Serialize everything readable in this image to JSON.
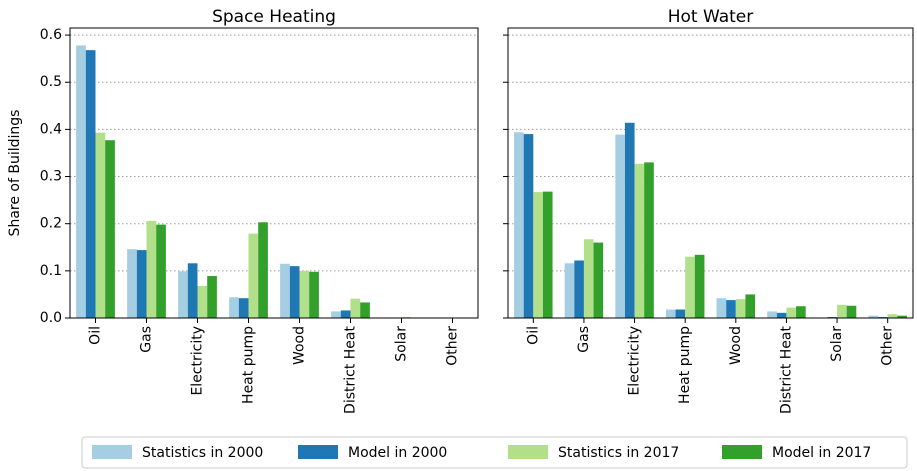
{
  "chart_data": [
    {
      "type": "bar",
      "title": "Space Heating",
      "y_label": "Share of Buildings",
      "categories": [
        "Oil",
        "Gas",
        "Electricity",
        "Heat pump",
        "Wood",
        "District Heat",
        "Solar",
        "Other"
      ],
      "series": [
        {
          "name": "Statistics in 2000",
          "color": "#a6cee3",
          "values": [
            0.578,
            0.146,
            0.099,
            0.044,
            0.115,
            0.014,
            0,
            0
          ]
        },
        {
          "name": "Model in 2000",
          "color": "#1f78b4",
          "values": [
            0.568,
            0.144,
            0.116,
            0.042,
            0.11,
            0.016,
            0,
            0
          ]
        },
        {
          "name": "Statistics in 2017",
          "color": "#b2df8a",
          "values": [
            0.393,
            0.206,
            0.068,
            0.179,
            0.1,
            0.041,
            0.002,
            0
          ]
        },
        {
          "name": "Model in 2017",
          "color": "#33a02c",
          "values": [
            0.377,
            0.198,
            0.089,
            0.203,
            0.098,
            0.033,
            0,
            0
          ]
        }
      ],
      "ylim": [
        0,
        0.615
      ],
      "yticks": [
        {
          "value": 0,
          "label": "0.0"
        },
        0.1,
        0.2,
        0.3,
        0.4,
        0.5,
        0.6
      ],
      "grid": true
    },
    {
      "type": "bar",
      "title": "Hot Water",
      "categories": [
        "Oil",
        "Gas",
        "Electricity",
        "Heat pump",
        "Wood",
        "District Heat",
        "Solar",
        "Other"
      ],
      "series": [
        {
          "color": "#a6cee3",
          "values": [
            0.394,
            0.116,
            0.389,
            0.018,
            0.042,
            0.014,
            0,
            0.005
          ]
        },
        {
          "color": "#1f78b4",
          "values": [
            0.39,
            0.122,
            0.414,
            0.018,
            0.038,
            0.011,
            0.002,
            0.002
          ]
        },
        {
          "color": "#b2df8a",
          "values": [
            0.267,
            0.167,
            0.327,
            0.13,
            0.04,
            0.022,
            0.028,
            0.008
          ]
        },
        {
          "color": "#33a02c",
          "values": [
            0.268,
            0.16,
            0.33,
            0.134,
            0.05,
            0.025,
            0.026,
            0.005
          ]
        }
      ],
      "ylim": [
        0,
        0.615
      ],
      "yticks": [
        0,
        0.1,
        0.2,
        0.3,
        0.4,
        0.5,
        0.6
      ],
      "grid": true
    }
  ]
}
